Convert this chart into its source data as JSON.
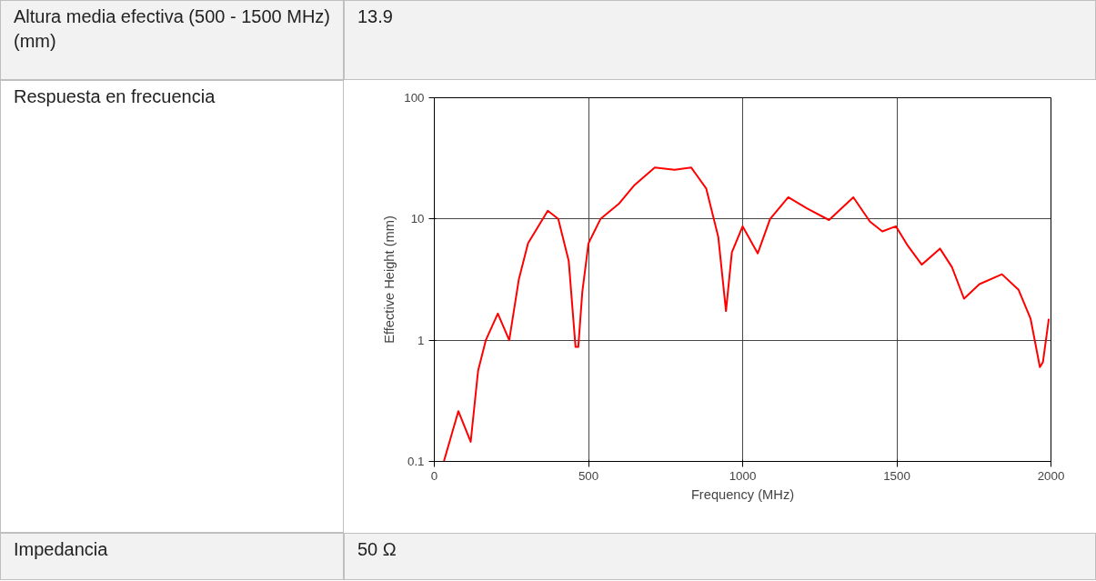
{
  "chart_data": {
    "type": "line",
    "xlabel": "Frequency (MHz)",
    "ylabel": "Effective Height (mm)",
    "annotations": [
      "Altura media efectiva (500 - 1500 MHz) (mm)",
      "13.9",
      "Respuesta en frecuencia",
      "Impedancia",
      "50 Ω"
    ],
    "x": [
      31,
      78,
      118,
      142,
      167,
      206,
      243,
      274,
      304,
      368,
      402,
      436,
      458,
      467,
      480,
      500,
      539,
      598,
      647,
      715,
      779,
      833,
      882,
      921,
      946,
      965,
      1000,
      1049,
      1089,
      1148,
      1207,
      1280,
      1359,
      1413,
      1453,
      1497,
      1536,
      1581,
      1640,
      1679,
      1718,
      1768,
      1841,
      1895,
      1934,
      1964,
      1974,
      1993
    ],
    "series": [
      {
        "color": "#ff0000",
        "values": [
          0.1,
          0.26,
          0.145,
          0.56,
          1.0,
          1.66,
          1.0,
          3.16,
          6.3,
          11.7,
          10,
          4.5,
          0.88,
          0.88,
          2.5,
          6.3,
          10,
          13.3,
          18.8,
          26.6,
          25.4,
          26.6,
          17.8,
          7.1,
          1.74,
          5.3,
          8.7,
          5.2,
          10,
          15.1,
          12.3,
          9.8,
          15.1,
          9.5,
          7.9,
          8.7,
          6.0,
          4.2,
          5.7,
          4.0,
          2.2,
          2.9,
          3.5,
          2.6,
          1.5,
          0.6,
          0.66,
          1.5
        ]
      }
    ],
    "xlim": [
      0,
      2000
    ],
    "xticks": [
      0,
      500,
      1000,
      1500,
      2000
    ],
    "ylim": [
      0.1,
      100
    ],
    "yticks": [
      0.1,
      1,
      10,
      100
    ],
    "log": true,
    "grid": true
  }
}
